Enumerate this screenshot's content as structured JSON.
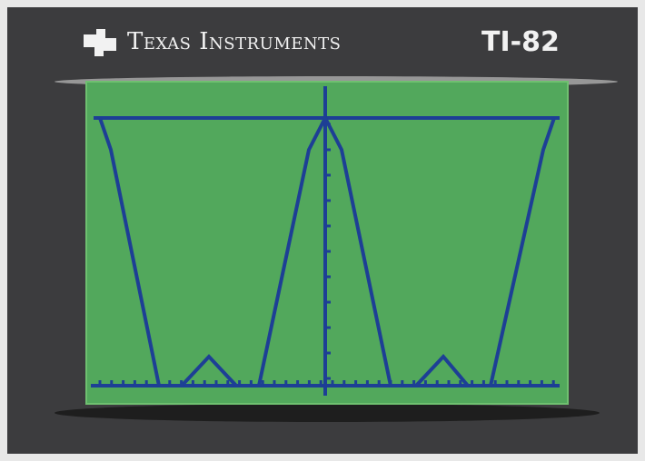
{
  "header": {
    "brand": "Texas Instruments",
    "model": "TI-82"
  }
}
